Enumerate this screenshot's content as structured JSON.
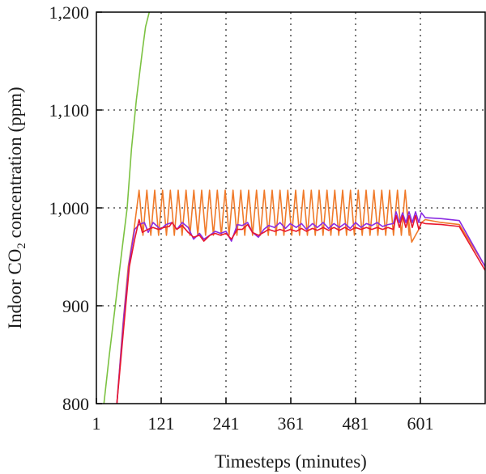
{
  "chart_data": {
    "type": "line",
    "xlabel": "Timesteps (minutes)",
    "ylabel_main": "Indoor CO",
    "ylabel_sub": "2",
    "ylabel_tail": " concentration (ppm)",
    "xlim": [
      1,
      721
    ],
    "ylim": [
      800,
      1200
    ],
    "xticks": [
      {
        "value": 1,
        "label": "1"
      },
      {
        "value": 121,
        "label": "121"
      },
      {
        "value": 241,
        "label": "241"
      },
      {
        "value": 361,
        "label": "361"
      },
      {
        "value": 481,
        "label": "481"
      },
      {
        "value": 601,
        "label": "601"
      }
    ],
    "yticks": [
      {
        "value": 800,
        "label": "800"
      },
      {
        "value": 900,
        "label": "900"
      },
      {
        "value": 1000,
        "label": "1,000"
      },
      {
        "value": 1100,
        "label": "1,100"
      },
      {
        "value": 1200,
        "label": "1,200"
      }
    ],
    "grid": true,
    "series": [
      {
        "color": "#7cc242",
        "points": [
          [
            15,
            800
          ],
          [
            25,
            850
          ],
          [
            36,
            900
          ],
          [
            48,
            955
          ],
          [
            58,
            1000
          ],
          [
            66,
            1060
          ],
          [
            75,
            1110
          ],
          [
            86,
            1160
          ],
          [
            92,
            1185
          ],
          [
            99,
            1200
          ]
        ]
      },
      {
        "color": "#f07a2a",
        "pattern": "sawtooth",
        "points": [
          [
            39,
            800
          ],
          [
            50,
            880
          ],
          [
            60,
            940
          ],
          [
            70,
            975
          ],
          [
            80,
            1018
          ],
          [
            85,
            970
          ],
          [
            601,
            985
          ],
          [
            610,
            988
          ],
          [
            640,
            985
          ],
          [
            673,
            983
          ],
          [
            721,
            940
          ]
        ],
        "osc": {
          "x_start": 80,
          "x_end": 575,
          "period": 14.5,
          "high": 1018,
          "low": 972,
          "end_points": [
            [
              575,
              1003
            ],
            [
              585,
              965
            ],
            [
              598,
              978
            ],
            [
              603,
              985
            ]
          ]
        }
      },
      {
        "color": "#8a2be2",
        "points": [
          [
            39,
            800
          ],
          [
            52,
            890
          ],
          [
            62,
            945
          ],
          [
            72,
            978
          ],
          [
            80,
            983
          ],
          [
            90,
            985
          ],
          [
            97,
            975
          ],
          [
            106,
            985
          ],
          [
            120,
            978
          ],
          [
            130,
            983
          ],
          [
            141,
            985
          ],
          [
            150,
            978
          ],
          [
            160,
            985
          ],
          [
            171,
            980
          ],
          [
            181,
            968
          ],
          [
            192,
            974
          ],
          [
            200,
            968
          ],
          [
            211,
            972
          ],
          [
            221,
            976
          ],
          [
            231,
            974
          ],
          [
            241,
            976
          ],
          [
            251,
            966
          ],
          [
            262,
            983
          ],
          [
            271,
            982
          ],
          [
            281,
            985
          ],
          [
            290,
            975
          ],
          [
            301,
            970
          ],
          [
            311,
            978
          ],
          [
            320,
            982
          ],
          [
            331,
            980
          ],
          [
            341,
            985
          ],
          [
            351,
            979
          ],
          [
            360,
            984
          ],
          [
            371,
            980
          ],
          [
            381,
            984
          ],
          [
            390,
            978
          ],
          [
            401,
            984
          ],
          [
            410,
            980
          ],
          [
            421,
            985
          ],
          [
            431,
            979
          ],
          [
            441,
            984
          ],
          [
            451,
            980
          ],
          [
            461,
            984
          ],
          [
            471,
            979
          ],
          [
            481,
            985
          ],
          [
            491,
            980
          ],
          [
            501,
            984
          ],
          [
            511,
            982
          ],
          [
            521,
            985
          ],
          [
            531,
            981
          ],
          [
            541,
            983
          ],
          [
            551,
            984
          ],
          [
            556,
            996
          ],
          [
            562,
            985
          ],
          [
            568,
            995
          ],
          [
            574,
            985
          ],
          [
            580,
            996
          ],
          [
            586,
            985
          ],
          [
            592,
            996
          ],
          [
            598,
            985
          ],
          [
            603,
            995
          ],
          [
            610,
            990
          ],
          [
            640,
            989
          ],
          [
            673,
            987
          ],
          [
            721,
            940
          ]
        ]
      },
      {
        "color": "#e8172f",
        "points": [
          [
            39,
            800
          ],
          [
            52,
            880
          ],
          [
            62,
            940
          ],
          [
            72,
            968
          ],
          [
            80,
            988
          ],
          [
            86,
            975
          ],
          [
            96,
            978
          ],
          [
            106,
            980
          ],
          [
            116,
            978
          ],
          [
            126,
            980
          ],
          [
            136,
            981
          ],
          [
            141,
            985
          ],
          [
            150,
            978
          ],
          [
            160,
            982
          ],
          [
            171,
            975
          ],
          [
            181,
            970
          ],
          [
            192,
            972
          ],
          [
            200,
            966
          ],
          [
            211,
            972
          ],
          [
            221,
            974
          ],
          [
            231,
            972
          ],
          [
            241,
            974
          ],
          [
            251,
            968
          ],
          [
            262,
            978
          ],
          [
            271,
            978
          ],
          [
            281,
            983
          ],
          [
            290,
            975
          ],
          [
            301,
            972
          ],
          [
            311,
            975
          ],
          [
            320,
            978
          ],
          [
            331,
            976
          ],
          [
            341,
            978
          ],
          [
            351,
            976
          ],
          [
            360,
            978
          ],
          [
            371,
            976
          ],
          [
            381,
            979
          ],
          [
            390,
            976
          ],
          [
            401,
            979
          ],
          [
            410,
            977
          ],
          [
            421,
            980
          ],
          [
            431,
            977
          ],
          [
            441,
            980
          ],
          [
            451,
            977
          ],
          [
            461,
            980
          ],
          [
            471,
            977
          ],
          [
            481,
            980
          ],
          [
            491,
            978
          ],
          [
            501,
            980
          ],
          [
            511,
            978
          ],
          [
            521,
            980
          ],
          [
            531,
            978
          ],
          [
            541,
            980
          ],
          [
            551,
            978
          ],
          [
            556,
            992
          ],
          [
            562,
            980
          ],
          [
            568,
            992
          ],
          [
            574,
            980
          ],
          [
            580,
            992
          ],
          [
            586,
            980
          ],
          [
            592,
            992
          ],
          [
            598,
            978
          ],
          [
            603,
            985
          ],
          [
            610,
            984
          ],
          [
            640,
            983
          ],
          [
            673,
            981
          ],
          [
            721,
            936
          ]
        ]
      }
    ]
  }
}
